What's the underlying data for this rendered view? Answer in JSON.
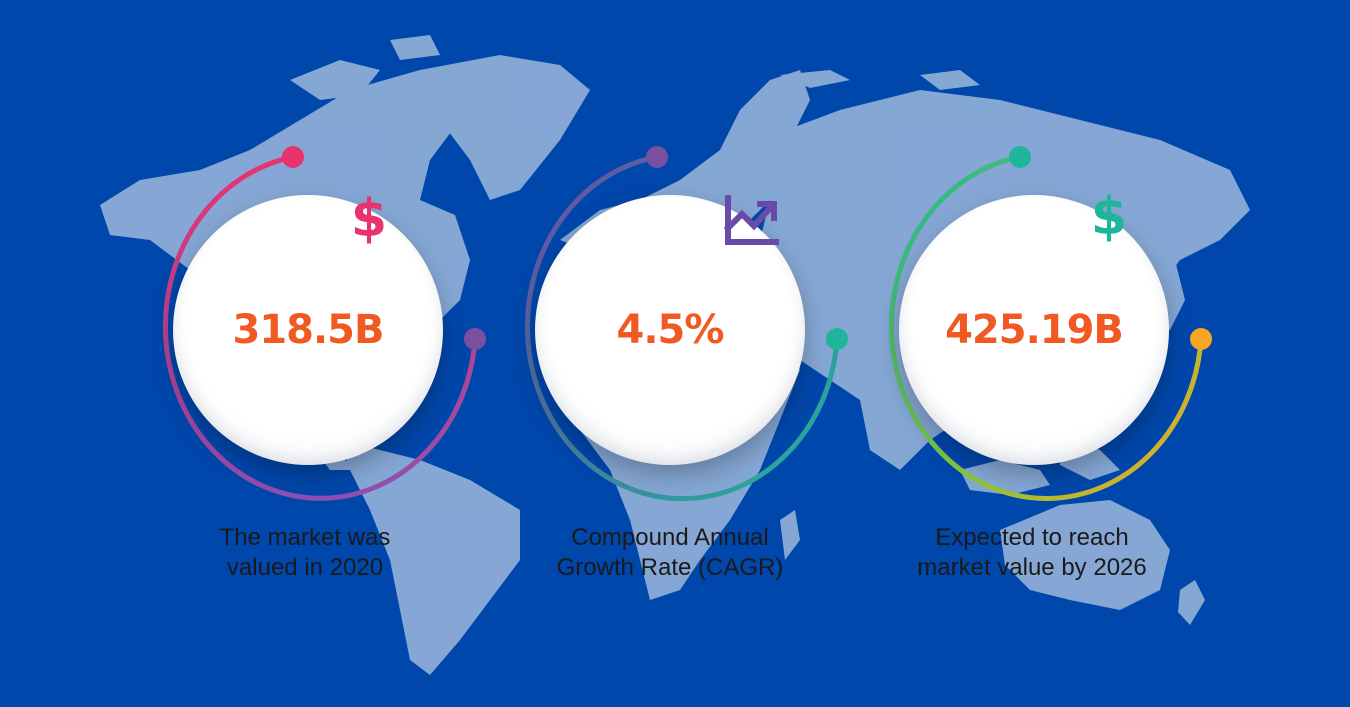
{
  "stats": [
    {
      "value": "318.5B",
      "caption_line1": "The market was",
      "caption_line2": "valued in 2020",
      "icon": "dollar-icon",
      "icon_color": "#e8336e",
      "arc_colors": [
        "#e8336e",
        "#8e4fb0"
      ],
      "end_dot_color": "#7b4fa0"
    },
    {
      "value": "4.5%",
      "caption_line1": "Compound Annual",
      "caption_line2": "Growth Rate (CAGR)",
      "icon": "trend-chart-icon",
      "icon_color": "#6a4aa8",
      "arc_colors": [
        "#6a4aa8",
        "#1eb59a"
      ],
      "end_dot_color": "#1eb59a"
    },
    {
      "value": "425.19B",
      "caption_line1": "Expected to reach",
      "caption_line2": "market value by 2026",
      "icon": "dollar-icon",
      "icon_color": "#1eb59a",
      "arc_colors": [
        "#1eb59a",
        "#f5a623"
      ],
      "end_dot_color": "#f5a623"
    }
  ],
  "colors": {
    "background": "#0047ab",
    "map": "#9db8dc",
    "value_text": "#f05a22",
    "caption_text": "#1a1a1a"
  }
}
